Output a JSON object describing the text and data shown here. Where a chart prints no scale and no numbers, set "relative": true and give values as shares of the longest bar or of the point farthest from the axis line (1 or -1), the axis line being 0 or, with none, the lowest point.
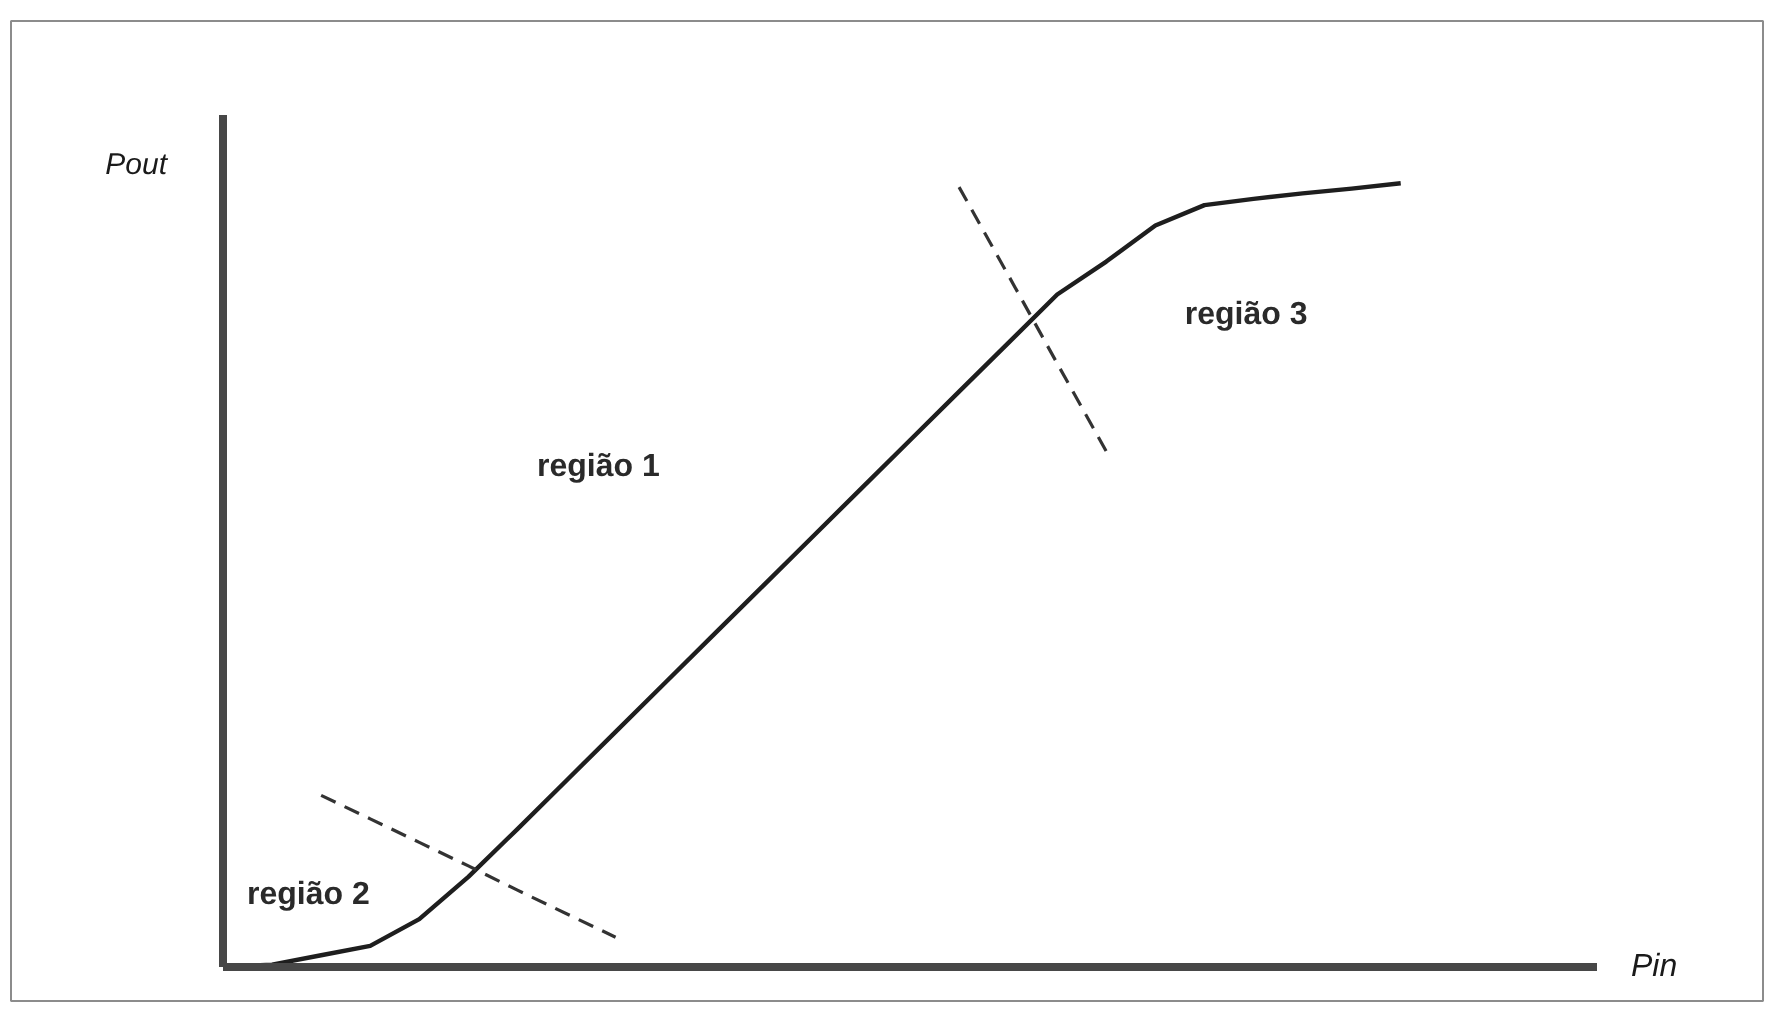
{
  "chart_data": {
    "type": "line",
    "relative": true,
    "xlabel": "Pin",
    "ylabel": "Pout",
    "categories": [
      null,
      null,
      null,
      null,
      null,
      null,
      null,
      null,
      null,
      null,
      null,
      null,
      null,
      null,
      null,
      null,
      null,
      null,
      null,
      null,
      null,
      null,
      null,
      null,
      null,
      null,
      null,
      null,
      null
    ],
    "series": [
      {
        "color": "#1e1e1e",
        "values": [
          0,
          0.003,
          0.015,
          0.027,
          0.061,
          0.115,
          0.176,
          0.238,
          0.3,
          0.362,
          0.424,
          0.486,
          0.548,
          0.61,
          0.672,
          0.734,
          0.796,
          0.858,
          0.9,
          0.946,
          0.972,
          0.98,
          0.987,
          0.993,
          1,
          null,
          null,
          null,
          null
        ]
      },
      {
        "color": "#333333",
        "line_style": "dashed",
        "values": [
          null,
          null,
          0.219,
          0.189,
          0.159,
          0.129,
          0.098,
          0.068,
          0.038,
          null,
          null,
          null,
          null,
          null,
          null,
          null,
          null,
          null,
          null,
          null,
          null,
          null,
          null,
          null,
          null,
          null,
          null,
          null,
          null
        ]
      },
      {
        "color": "#333333",
        "line_style": "dashed",
        "values": [
          null,
          null,
          null,
          null,
          null,
          null,
          null,
          null,
          null,
          null,
          null,
          null,
          null,
          null,
          null,
          0.995,
          0.883,
          0.77,
          0.658,
          null,
          null,
          null,
          null,
          null,
          null,
          null,
          null,
          null,
          null
        ]
      }
    ],
    "annotations": [
      "região 1",
      "região 2",
      "região 3"
    ]
  }
}
